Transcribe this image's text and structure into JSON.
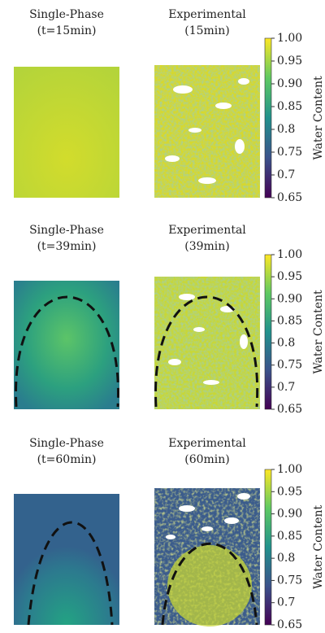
{
  "rows": [
    {
      "left_title": [
        "Single-Phase",
        "(t=15min)"
      ],
      "right_title": [
        "Experimental",
        "(15min)"
      ],
      "colorbar": {
        "label": "Water Content",
        "lim": [
          0.65,
          1.0
        ],
        "ticks": [
          0.65,
          0.7,
          {
            "value": 0.75,
            "label": "0.75"
          },
          0.8,
          0.85,
          {
            "value": 0.9,
            "label": "0.90"
          },
          0.95,
          {
            "value": 1.0,
            "label": "1.00"
          }
        ]
      }
    },
    {
      "left_title": [
        "Single-Phase",
        "(t=39min)"
      ],
      "right_title": [
        "Experimental",
        "(39min)"
      ],
      "colorbar": {
        "label": "Water Content",
        "lim": [
          0.65,
          1.0
        ],
        "ticks": [
          0.65,
          0.7,
          {
            "value": 0.75,
            "label": "0.75"
          },
          0.8,
          0.85,
          {
            "value": 0.9,
            "label": "0.90"
          },
          0.95,
          {
            "value": 1.0,
            "label": "1.00"
          }
        ]
      }
    },
    {
      "left_title": [
        "Single-Phase",
        "(t=60min)"
      ],
      "right_title": [
        "Experimental",
        "(60min)"
      ],
      "colorbar": {
        "label": "Water Content",
        "lim": [
          0.65,
          1.0
        ],
        "ticks": [
          0.65,
          0.7,
          {
            "value": 0.75,
            "label": "0.75"
          },
          0.8,
          0.85,
          {
            "value": 0.9,
            "label": "0.90"
          },
          0.95,
          {
            "value": 1.0,
            "label": "1.00"
          }
        ]
      }
    }
  ]
}
